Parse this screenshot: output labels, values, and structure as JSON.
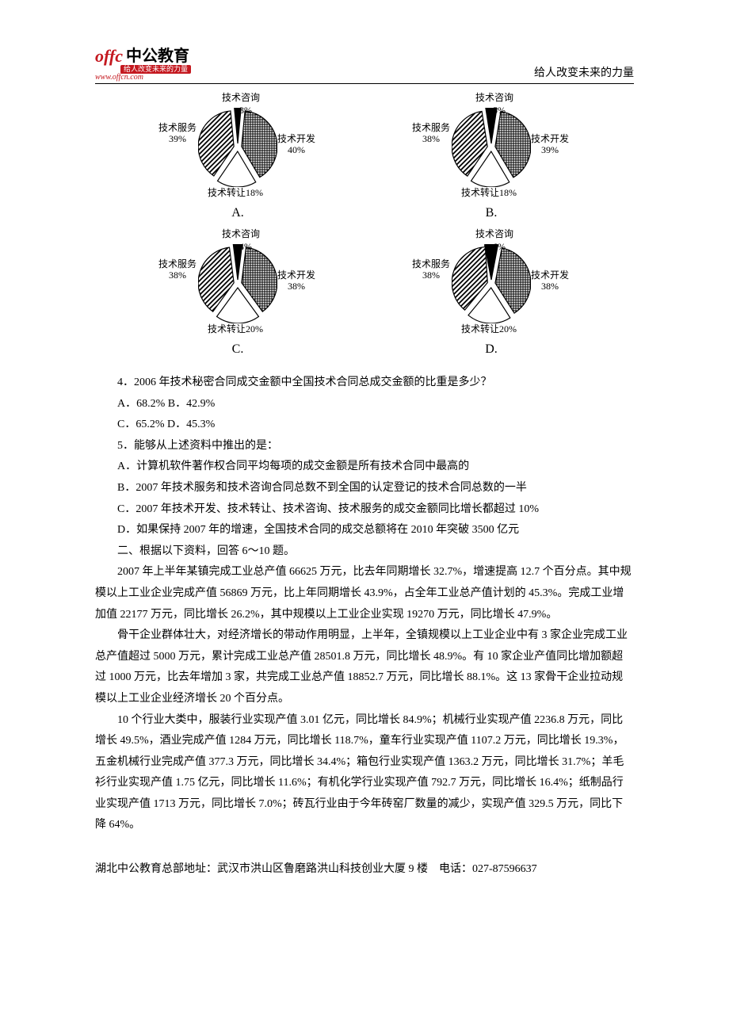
{
  "header": {
    "logo_mark": "offc",
    "logo_cn": "中公教育",
    "logo_sub": "给人改变未来的力量",
    "logo_url": "www.offcn.com",
    "slogan": "给人改变未来的力量"
  },
  "charts": [
    {
      "letter": "A.",
      "labels": {
        "consult": "技术咨询",
        "consult_pct": "3%",
        "dev": "技术开发",
        "dev_pct": "40%",
        "transfer": "技术转让18%",
        "service": "技术服务",
        "service_pct": "39%"
      },
      "slices": {
        "consult": 3,
        "dev": 40,
        "transfer": 18,
        "service": 39
      }
    },
    {
      "letter": "B.",
      "labels": {
        "consult": "技术咨询",
        "consult_pct": "5%",
        "dev": "技术开发",
        "dev_pct": "39%",
        "transfer": "技术转让18%",
        "service": "技术服务",
        "service_pct": "38%"
      },
      "slices": {
        "consult": 5,
        "dev": 39,
        "transfer": 18,
        "service": 38
      }
    },
    {
      "letter": "C.",
      "labels": {
        "consult": "技术咨询",
        "consult_pct": "4%",
        "dev": "技术开发",
        "dev_pct": "38%",
        "transfer": "技术转让20%",
        "service": "技术服务",
        "service_pct": "38%"
      },
      "slices": {
        "consult": 4,
        "dev": 38,
        "transfer": 20,
        "service": 38
      }
    },
    {
      "letter": "D.",
      "labels": {
        "consult": "技术咨询",
        "consult_pct": "6%",
        "dev": "技术开发",
        "dev_pct": "38%",
        "transfer": "技术转让20%",
        "service": "技术服务",
        "service_pct": "38%"
      },
      "slices": {
        "consult": 6,
        "dev": 38,
        "transfer": 20,
        "service": 38
      }
    }
  ],
  "q4": {
    "stem": "4．2006 年技术秘密合同成交金额中全国技术合同总成交金额的比重是多少？",
    "a": "A．68.2% B．42.9%",
    "c": "C．65.2% D．45.3%"
  },
  "q5": {
    "stem": "5．能够从上述资料中推出的是：",
    "a": "A．计算机软件著作权合同平均每项的成交金额是所有技术合同中最高的",
    "b": "B．2007 年技术服务和技术咨询合同总数不到全国的认定登记的技术合同总数的一半",
    "c": "C．2007 年技术开发、技术转让、技术咨询、技术服务的成交金额同比增长都超过 10%",
    "d": "D．如果保持 2007 年的增速，全国技术合同的成交总额将在 2010 年突破 3500 亿元"
  },
  "section2": "二、根据以下资料，回答 6～10 题。",
  "para1": "2007 年上半年某镇完成工业总产值 66625 万元，比去年同期增长 32.7%，增速提高 12.7 个百分点。其中规模以上工业企业完成产值 56869 万元，比上年同期增长 43.9%，占全年工业总产值计划的 45.3%。完成工业增加值 22177 万元，同比增长 26.2%，其中规模以上工业企业实现 19270 万元，同比增长 47.9%。",
  "para2": "骨干企业群体壮大，对经济增长的带动作用明显，上半年，全镇规模以上工业企业中有 3 家企业完成工业总产值超过 5000 万元，累计完成工业总产值 28501.8 万元，同比增长 48.9%。有 10 家企业产值同比增加额超过 1000 万元，比去年增加 3 家，共完成工业总产值 18852.7 万元，同比增长 88.1%。这 13 家骨干企业拉动规模以上工业企业经济增长 20 个百分点。",
  "para3": "10 个行业大类中，服装行业实现产值 3.01 亿元，同比增长 84.9%；机械行业实现产值 2236.8 万元，同比增长 49.5%，酒业完成产值 1284 万元，同比增长 118.7%，童车行业实现产值 1107.2 万元，同比增长 19.3%，五金机械行业完成产值 377.3 万元，同比增长 34.4%；箱包行业实现产值 1363.2 万元，同比增长 31.7%；羊毛衫行业实现产值 1.75 亿元，同比增长 11.6%；有机化学行业实现产值 792.7 万元，同比增长 16.4%；纸制品行业实现产值 1713 万元，同比增长 7.0%；砖瓦行业由于今年砖窑厂数量的减少，实现产值 329.5 万元，同比下降 64%。",
  "footer": "湖北中公教育总部地址：武汉市洪山区鲁磨路洪山科技创业大厦 9 楼　电话：027-87596637"
}
